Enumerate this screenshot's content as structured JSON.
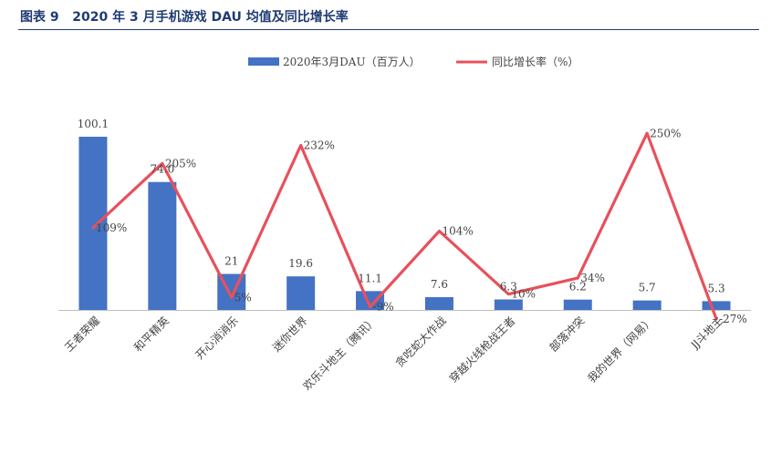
{
  "figure": {
    "label": "图表 9",
    "title": "2020 年 3 月手机游戏 DAU 均值及同比增长率"
  },
  "colors": {
    "bar": "#4472c4",
    "line": "#e8505b",
    "rule": "#1f3b73"
  },
  "chart_data": {
    "type": "bar",
    "title": "",
    "xlabel": "",
    "ylabel": "",
    "categories": [
      "王者荣耀",
      "和平精英",
      "开心消消乐",
      "迷你世界",
      "欢乐斗地主（腾讯）",
      "贪吃蛇大作战",
      "穿越火线枪战王者",
      "部落冲突",
      "我的世界（网易）",
      "JJ斗地主"
    ],
    "series": [
      {
        "name": "2020年3月DAU（百万人）",
        "type": "bar",
        "axis": "left",
        "values": [
          100.1,
          74.0,
          21.0,
          19.6,
          11.1,
          7.6,
          6.3,
          6.2,
          5.7,
          5.3
        ],
        "labels": [
          "100.1",
          "74.0",
          "21",
          "19.6",
          "11.1",
          "7.6",
          "6.3",
          "6.2",
          "5.7",
          "5.3"
        ]
      },
      {
        "name": "同比增长率（%）",
        "type": "line",
        "axis": "right",
        "values": [
          109,
          205,
          5,
          232,
          -9,
          104,
          10,
          34,
          250,
          -27
        ],
        "labels": [
          "109%",
          "205%",
          "5%",
          "232%",
          "-9%",
          "104%",
          "10%",
          "34%",
          "250%",
          "-27%"
        ]
      }
    ],
    "ylim_left": [
      0,
      150
    ],
    "ylim_right": [
      -50,
      300
    ],
    "legend_position": "top-center",
    "grid": false
  }
}
